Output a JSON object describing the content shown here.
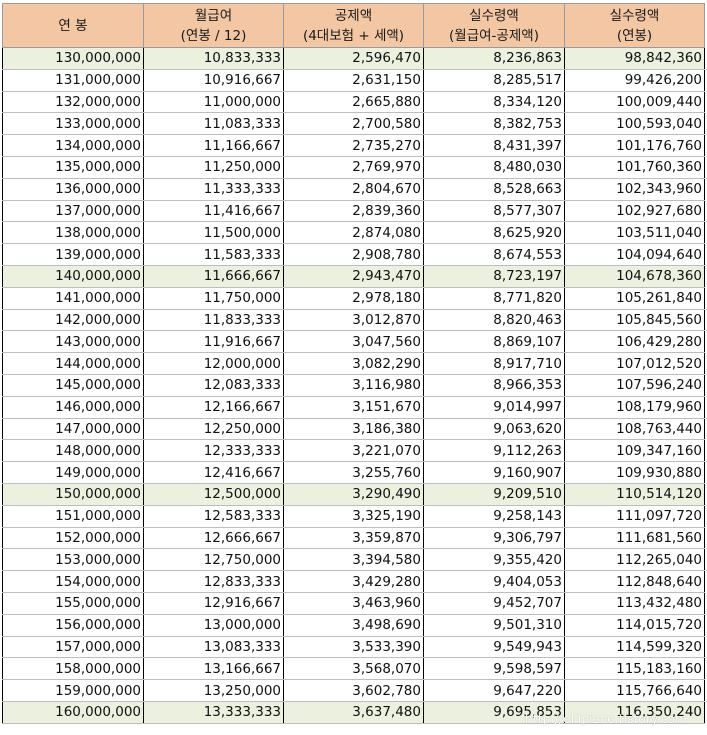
{
  "headers": [
    [
      "연 봉"
    ],
    [
      "월급여",
      "(연봉 / 12)"
    ],
    [
      "공제액",
      "(4대보험 + 세액)"
    ],
    [
      "실수령액",
      "(월급여-공제액)"
    ],
    [
      "실수령액",
      "(연봉)"
    ]
  ],
  "rows": [
    {
      "hl": true,
      "cells": [
        "130,000,000",
        "10,833,333",
        "2,596,470",
        "8,236,863",
        "98,842,360"
      ]
    },
    {
      "hl": false,
      "cells": [
        "131,000,000",
        "10,916,667",
        "2,631,150",
        "8,285,517",
        "99,426,200"
      ]
    },
    {
      "hl": false,
      "cells": [
        "132,000,000",
        "11,000,000",
        "2,665,880",
        "8,334,120",
        "100,009,440"
      ]
    },
    {
      "hl": false,
      "cells": [
        "133,000,000",
        "11,083,333",
        "2,700,580",
        "8,382,753",
        "100,593,040"
      ]
    },
    {
      "hl": false,
      "cells": [
        "134,000,000",
        "11,166,667",
        "2,735,270",
        "8,431,397",
        "101,176,760"
      ]
    },
    {
      "hl": false,
      "cells": [
        "135,000,000",
        "11,250,000",
        "2,769,970",
        "8,480,030",
        "101,760,360"
      ]
    },
    {
      "hl": false,
      "cells": [
        "136,000,000",
        "11,333,333",
        "2,804,670",
        "8,528,663",
        "102,343,960"
      ]
    },
    {
      "hl": false,
      "cells": [
        "137,000,000",
        "11,416,667",
        "2,839,360",
        "8,577,307",
        "102,927,680"
      ]
    },
    {
      "hl": false,
      "cells": [
        "138,000,000",
        "11,500,000",
        "2,874,080",
        "8,625,920",
        "103,511,040"
      ]
    },
    {
      "hl": false,
      "cells": [
        "139,000,000",
        "11,583,333",
        "2,908,780",
        "8,674,553",
        "104,094,640"
      ]
    },
    {
      "hl": true,
      "cells": [
        "140,000,000",
        "11,666,667",
        "2,943,470",
        "8,723,197",
        "104,678,360"
      ]
    },
    {
      "hl": false,
      "cells": [
        "141,000,000",
        "11,750,000",
        "2,978,180",
        "8,771,820",
        "105,261,840"
      ]
    },
    {
      "hl": false,
      "cells": [
        "142,000,000",
        "11,833,333",
        "3,012,870",
        "8,820,463",
        "105,845,560"
      ]
    },
    {
      "hl": false,
      "cells": [
        "143,000,000",
        "11,916,667",
        "3,047,560",
        "8,869,107",
        "106,429,280"
      ]
    },
    {
      "hl": false,
      "cells": [
        "144,000,000",
        "12,000,000",
        "3,082,290",
        "8,917,710",
        "107,012,520"
      ]
    },
    {
      "hl": false,
      "cells": [
        "145,000,000",
        "12,083,333",
        "3,116,980",
        "8,966,353",
        "107,596,240"
      ]
    },
    {
      "hl": false,
      "cells": [
        "146,000,000",
        "12,166,667",
        "3,151,670",
        "9,014,997",
        "108,179,960"
      ]
    },
    {
      "hl": false,
      "cells": [
        "147,000,000",
        "12,250,000",
        "3,186,380",
        "9,063,620",
        "108,763,440"
      ]
    },
    {
      "hl": false,
      "cells": [
        "148,000,000",
        "12,333,333",
        "3,221,070",
        "9,112,263",
        "109,347,160"
      ]
    },
    {
      "hl": false,
      "cells": [
        "149,000,000",
        "12,416,667",
        "3,255,760",
        "9,160,907",
        "109,930,880"
      ]
    },
    {
      "hl": true,
      "cells": [
        "150,000,000",
        "12,500,000",
        "3,290,490",
        "9,209,510",
        "110,514,120"
      ]
    },
    {
      "hl": false,
      "cells": [
        "151,000,000",
        "12,583,333",
        "3,325,190",
        "9,258,143",
        "111,097,720"
      ]
    },
    {
      "hl": false,
      "cells": [
        "152,000,000",
        "12,666,667",
        "3,359,870",
        "9,306,797",
        "111,681,560"
      ]
    },
    {
      "hl": false,
      "cells": [
        "153,000,000",
        "12,750,000",
        "3,394,580",
        "9,355,420",
        "112,265,040"
      ]
    },
    {
      "hl": false,
      "cells": [
        "154,000,000",
        "12,833,333",
        "3,429,280",
        "9,404,053",
        "112,848,640"
      ]
    },
    {
      "hl": false,
      "cells": [
        "155,000,000",
        "12,916,667",
        "3,463,960",
        "9,452,707",
        "113,432,480"
      ]
    },
    {
      "hl": false,
      "cells": [
        "156,000,000",
        "13,000,000",
        "3,498,690",
        "9,501,310",
        "114,015,720"
      ]
    },
    {
      "hl": false,
      "cells": [
        "157,000,000",
        "13,083,333",
        "3,533,390",
        "9,549,943",
        "114,599,320"
      ]
    },
    {
      "hl": false,
      "cells": [
        "158,000,000",
        "13,166,667",
        "3,568,070",
        "9,598,597",
        "115,183,160"
      ]
    },
    {
      "hl": false,
      "cells": [
        "159,000,000",
        "13,250,000",
        "3,602,780",
        "9,647,220",
        "115,766,640"
      ]
    },
    {
      "hl": true,
      "cells": [
        "160,000,000",
        "13,333,333",
        "3,637,480",
        "9,695,853",
        "116,350,240"
      ]
    }
  ],
  "watermark": "http://ellipiece.tistory.com"
}
